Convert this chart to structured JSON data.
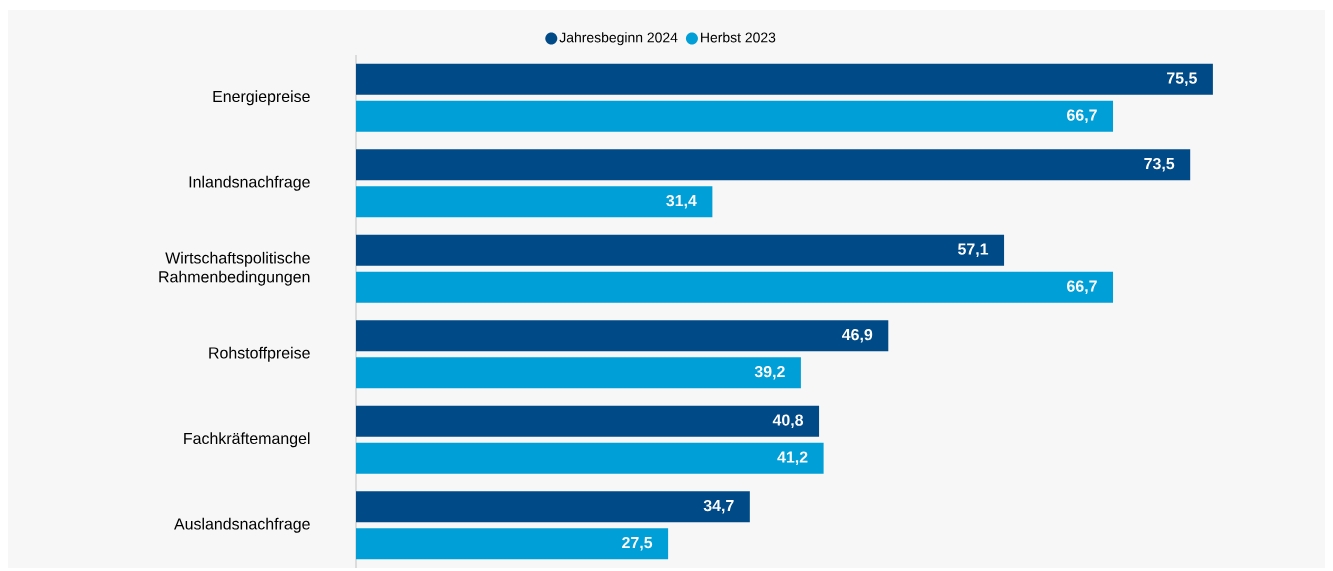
{
  "chart_data": {
    "type": "bar",
    "orientation": "horizontal",
    "legend": "top",
    "categories": [
      "Energiepreise",
      "Inlandsnachfrage",
      "Wirtschaftspolitische Rahmenbedingungen",
      "Rohstoffpreise",
      "Fachkräftemangel",
      "Auslandsnachfrage"
    ],
    "series": [
      {
        "name": "Jahresbeginn 2024",
        "color": "#004a87",
        "values": [
          75.5,
          73.5,
          57.1,
          46.9,
          40.8,
          34.7
        ],
        "value_labels": [
          "75,5",
          "73,5",
          "57,1",
          "46,9",
          "40,8",
          "34,7"
        ]
      },
      {
        "name": "Herbst 2023",
        "color": "#009fd7",
        "values": [
          66.7,
          31.4,
          66.7,
          39.2,
          41.2,
          27.5
        ],
        "value_labels": [
          "66,7",
          "31,4",
          "66,7",
          "39,2",
          "41,2",
          "27,5"
        ]
      }
    ]
  }
}
